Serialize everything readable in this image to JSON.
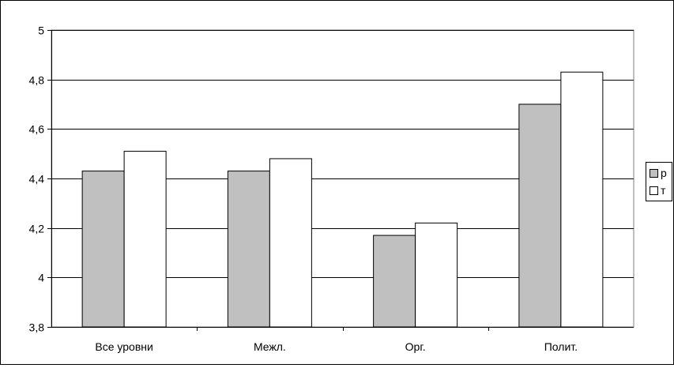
{
  "chart_data": {
    "type": "bar",
    "title": "",
    "xlabel": "",
    "ylabel": "",
    "categories": [
      "Все уровни",
      "Межл.",
      "Орг.",
      "Полит."
    ],
    "series": [
      {
        "name": "р",
        "values": [
          4.43,
          4.43,
          4.17,
          4.7
        ],
        "color": "#c0c0c0"
      },
      {
        "name": "т",
        "values": [
          4.51,
          4.48,
          4.22,
          4.83
        ],
        "color": "#ffffff"
      }
    ],
    "ylim": [
      3.8,
      5
    ],
    "yticks": [
      3.8,
      4,
      4.2,
      4.4,
      4.6,
      4.8,
      5
    ],
    "ytick_labels": [
      "3,8",
      "4",
      "4,2",
      "4,4",
      "4,6",
      "4,8",
      "5"
    ],
    "grid": true,
    "legend_position": "right"
  }
}
